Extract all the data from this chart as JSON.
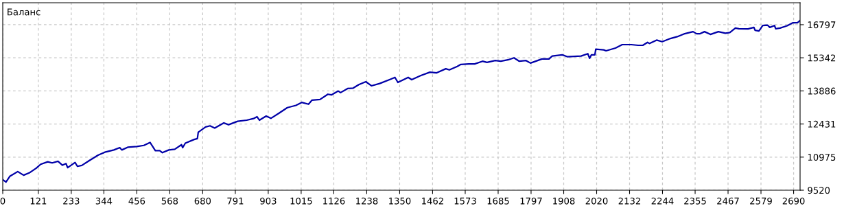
{
  "chart_data": {
    "type": "line",
    "title": "Баланс",
    "x": [
      0,
      11,
      24,
      51,
      71,
      90,
      114,
      129,
      153,
      168,
      188,
      203,
      215,
      221,
      246,
      254,
      269,
      293,
      324,
      347,
      378,
      398,
      405,
      425,
      456,
      480,
      501,
      519,
      534,
      543,
      565,
      585,
      608,
      612,
      621,
      651,
      662,
      665,
      690,
      705,
      721,
      752,
      768,
      799,
      830,
      853,
      865,
      873,
      896,
      912,
      939,
      968,
      997,
      1017,
      1040,
      1052,
      1079,
      1106,
      1118,
      1141,
      1149,
      1173,
      1192,
      1211,
      1235,
      1254,
      1282,
      1317,
      1334,
      1344,
      1379,
      1391,
      1422,
      1453,
      1476,
      1507,
      1519,
      1546,
      1558,
      1585,
      1605,
      1632,
      1647,
      1675,
      1694,
      1718,
      1739,
      1757,
      1780,
      1795,
      1834,
      1858,
      1869,
      1903,
      1920,
      1967,
      1990,
      1996,
      2002,
      2014,
      2017,
      2044,
      2052,
      2084,
      2107,
      2138,
      2161,
      2177,
      2193,
      2200,
      2224,
      2243,
      2271,
      2294,
      2317,
      2348,
      2360,
      2372,
      2387,
      2407,
      2434,
      2458,
      2473,
      2492,
      2504,
      2535,
      2555,
      2559,
      2572,
      2585,
      2601,
      2609,
      2625,
      2629,
      2644,
      2668,
      2687,
      2703,
      2712
    ],
    "series": [
      {
        "color": "#0000a8",
        "values": [
          9980,
          9880,
          10130,
          10340,
          10180,
          10280,
          10490,
          10660,
          10770,
          10720,
          10790,
          10620,
          10690,
          10510,
          10740,
          10570,
          10610,
          10810,
          11060,
          11190,
          11290,
          11390,
          11290,
          11410,
          11440,
          11490,
          11620,
          11260,
          11260,
          11170,
          11290,
          11320,
          11520,
          11390,
          11590,
          11750,
          11790,
          12070,
          12300,
          12350,
          12250,
          12480,
          12400,
          12550,
          12600,
          12670,
          12750,
          12600,
          12780,
          12680,
          12900,
          13150,
          13250,
          13380,
          13300,
          13480,
          13510,
          13740,
          13710,
          13880,
          13810,
          13990,
          14010,
          14160,
          14290,
          14110,
          14210,
          14390,
          14480,
          14260,
          14480,
          14380,
          14560,
          14710,
          14680,
          14860,
          14810,
          14960,
          15050,
          15070,
          15070,
          15190,
          15140,
          15220,
          15190,
          15250,
          15340,
          15190,
          15220,
          15110,
          15290,
          15290,
          15420,
          15470,
          15390,
          15420,
          15520,
          15320,
          15470,
          15470,
          15720,
          15690,
          15650,
          15770,
          15920,
          15920,
          15890,
          15890,
          16020,
          15970,
          16120,
          16050,
          16190,
          16270,
          16390,
          16490,
          16400,
          16400,
          16490,
          16370,
          16490,
          16420,
          16450,
          16650,
          16620,
          16610,
          16680,
          16550,
          16520,
          16760,
          16780,
          16680,
          16760,
          16620,
          16650,
          16750,
          16880,
          16880,
          16980
        ]
      }
    ],
    "xlim": [
      0,
      2712
    ],
    "ylim": [
      9520,
      17762
    ],
    "xticks": [
      0,
      121,
      233,
      344,
      456,
      568,
      680,
      791,
      903,
      1015,
      1126,
      1238,
      1350,
      1462,
      1573,
      1685,
      1797,
      1908,
      2020,
      2132,
      2244,
      2355,
      2467,
      2579,
      2690
    ],
    "yticks": [
      9520,
      10975,
      12431,
      13886,
      15342,
      16797
    ],
    "grid": true,
    "line_style": "solid",
    "marker": "none",
    "legend": false
  }
}
